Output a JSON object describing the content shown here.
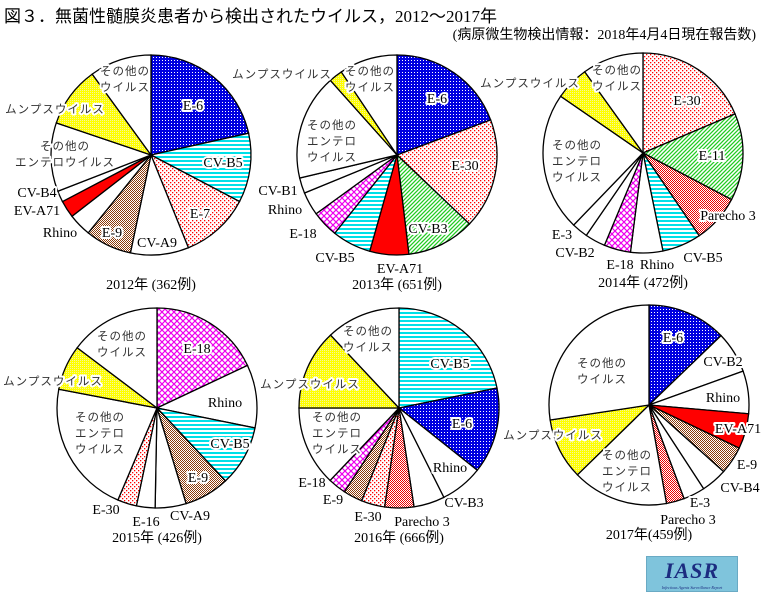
{
  "title": "図３．無菌性髄膜炎患者から検出されたウイルス，2012～2017年",
  "subtitle": "(病原微生物検出情報：2018年4月4日現在報告数)",
  "logo": {
    "text": "IASR",
    "subtext": "Infectious Agents Surveillance Report"
  },
  "chart_data": [
    {
      "type": "pie",
      "title": "2012年 (362例)",
      "unit": "percent (estimated)",
      "slices": [
        {
          "label": [
            "E-6"
          ],
          "value": 21.5,
          "pattern": "blue-check"
        },
        {
          "label": [
            "CV-B5"
          ],
          "value": 11.2,
          "pattern": "cyan-stripe"
        },
        {
          "label": [
            "E-7"
          ],
          "value": 11.2,
          "pattern": "red-dots"
        },
        {
          "label": [
            "CV-A9"
          ],
          "value": 9.4,
          "pattern": "white"
        },
        {
          "label": [
            "E-9"
          ],
          "value": 7.5,
          "pattern": "brown-check"
        },
        {
          "label": [
            "Rhino"
          ],
          "value": 3.7,
          "pattern": "white"
        },
        {
          "label": [
            "EV-A71"
          ],
          "value": 2.8,
          "pattern": "solid-red"
        },
        {
          "label": [
            "CV-B4"
          ],
          "value": 1.8,
          "pattern": "white"
        },
        {
          "label": [
            "その他の",
            "エンテロウイルス"
          ],
          "value": 11.1,
          "pattern": "white",
          "kind": "other"
        },
        {
          "label": [
            "ムンプスウイルス"
          ],
          "value": 9.8,
          "pattern": "yellow-dots",
          "kind": "mumps"
        },
        {
          "label": [
            "その他の",
            "ウイルス"
          ],
          "value": 10.0,
          "pattern": "white",
          "kind": "other"
        }
      ]
    },
    {
      "type": "pie",
      "title": "2013年 (651例)",
      "unit": "percent (estimated)",
      "slices": [
        {
          "label": [
            "E-6"
          ],
          "value": 19.3,
          "pattern": "blue-check"
        },
        {
          "label": [
            "E-30"
          ],
          "value": 17.8,
          "pattern": "red-dots"
        },
        {
          "label": [
            "CV-B3"
          ],
          "value": 11.0,
          "pattern": "green-diag"
        },
        {
          "label": [
            "EV-A71"
          ],
          "value": 6.3,
          "pattern": "solid-red"
        },
        {
          "label": [
            "CV-B5"
          ],
          "value": 6.3,
          "pattern": "cyan-stripe"
        },
        {
          "label": [
            "E-18"
          ],
          "value": 4.3,
          "pattern": "magenta-grid"
        },
        {
          "label": [
            "Rhino"
          ],
          "value": 3.8,
          "pattern": "white"
        },
        {
          "label": [
            "CV-B1"
          ],
          "value": 2.5,
          "pattern": "white"
        },
        {
          "label": [
            "その他の",
            "エンテロ",
            "ウイルス"
          ],
          "value": 17.1,
          "pattern": "white",
          "kind": "other"
        },
        {
          "label": [
            "ムンプスウイルス"
          ],
          "value": 2.2,
          "pattern": "yellow-dots",
          "kind": "mumps"
        },
        {
          "label": [
            "その他の",
            "ウイルス"
          ],
          "value": 9.4,
          "pattern": "white",
          "kind": "other"
        }
      ]
    },
    {
      "type": "pie",
      "title": "2014年 (472例)",
      "unit": "percent (estimated)",
      "slices": [
        {
          "label": [
            "E-30"
          ],
          "value": 18.6,
          "pattern": "red-dots"
        },
        {
          "label": [
            "E-11"
          ],
          "value": 14.1,
          "pattern": "green-diag"
        },
        {
          "label": [
            "Parecho 3"
          ],
          "value": 7.8,
          "pattern": "red-check"
        },
        {
          "label": [
            "CV-B5"
          ],
          "value": 6.3,
          "pattern": "cyan-stripe"
        },
        {
          "label": [
            "Rhino"
          ],
          "value": 5.2,
          "pattern": "white"
        },
        {
          "label": [
            "E-18"
          ],
          "value": 4.3,
          "pattern": "magenta-grid"
        },
        {
          "label": [
            "CV-B2"
          ],
          "value": 3.3,
          "pattern": "white"
        },
        {
          "label": [
            "E-3"
          ],
          "value": 2.6,
          "pattern": "white"
        },
        {
          "label": [
            "その他の",
            "エンテロ",
            "ウイルス"
          ],
          "value": 22.4,
          "pattern": "white",
          "kind": "other"
        },
        {
          "label": [
            "ムンプスウイルス"
          ],
          "value": 5.5,
          "pattern": "yellow-dots",
          "kind": "mumps"
        },
        {
          "label": [
            "その他の",
            "ウイルス"
          ],
          "value": 9.9,
          "pattern": "white",
          "kind": "other"
        }
      ]
    },
    {
      "type": "pie",
      "title": "2015年 (426例)",
      "unit": "percent (estimated)",
      "slices": [
        {
          "label": [
            "E-18"
          ],
          "value": 18.0,
          "pattern": "magenta-grid"
        },
        {
          "label": [
            "Rhino"
          ],
          "value": 10.2,
          "pattern": "white"
        },
        {
          "label": [
            "CV-B5"
          ],
          "value": 9.8,
          "pattern": "cyan-stripe"
        },
        {
          "label": [
            "E-9"
          ],
          "value": 7.3,
          "pattern": "brown-check"
        },
        {
          "label": [
            "CV-A9"
          ],
          "value": 5.0,
          "pattern": "white"
        },
        {
          "label": [
            "E-16"
          ],
          "value": 3.0,
          "pattern": "white"
        },
        {
          "label": [
            "E-30"
          ],
          "value": 3.1,
          "pattern": "red-dots"
        },
        {
          "label": [
            "その他の",
            "エンテロ",
            "ウイルス"
          ],
          "value": 21.6,
          "pattern": "white",
          "kind": "other"
        },
        {
          "label": [
            "ムンプスウイルス"
          ],
          "value": 7.3,
          "pattern": "yellow-dots",
          "kind": "mumps"
        },
        {
          "label": [
            "その他の",
            "ウイルス"
          ],
          "value": 14.7,
          "pattern": "white",
          "kind": "other"
        }
      ]
    },
    {
      "type": "pie",
      "title": "2016年 (666例)",
      "unit": "percent (estimated)",
      "slices": [
        {
          "label": [
            "CV-B5"
          ],
          "value": 21.8,
          "pattern": "cyan-stripe"
        },
        {
          "label": [
            "E-6"
          ],
          "value": 13.9,
          "pattern": "blue-check"
        },
        {
          "label": [
            "Rhino"
          ],
          "value": 6.9,
          "pattern": "white"
        },
        {
          "label": [
            "CV-B3"
          ],
          "value": 5.0,
          "pattern": "white"
        },
        {
          "label": [
            "Parecho 3"
          ],
          "value": 4.7,
          "pattern": "red-check"
        },
        {
          "label": [
            "E-30"
          ],
          "value": 3.8,
          "pattern": "red-dots"
        },
        {
          "label": [
            "E-9"
          ],
          "value": 3.1,
          "pattern": "brown-check"
        },
        {
          "label": [
            "E-18"
          ],
          "value": 2.9,
          "pattern": "magenta-grid"
        },
        {
          "label": [
            "その他の",
            "エンテロ",
            "ウイルス"
          ],
          "value": 12.9,
          "pattern": "white",
          "kind": "other"
        },
        {
          "label": [
            "ムンプスウイルス"
          ],
          "value": 13.0,
          "pattern": "yellow-dots",
          "kind": "mumps"
        },
        {
          "label": [
            "その他の",
            "ウイルス"
          ],
          "value": 12.0,
          "pattern": "white",
          "kind": "other"
        }
      ]
    },
    {
      "type": "pie",
      "title": "2017年(459例)",
      "unit": "percent (estimated)",
      "slices": [
        {
          "label": [
            "E-6"
          ],
          "value": 12.8,
          "pattern": "blue-check"
        },
        {
          "label": [
            "CV-B2"
          ],
          "value": 6.7,
          "pattern": "white"
        },
        {
          "label": [
            "Rhino"
          ],
          "value": 6.9,
          "pattern": "white"
        },
        {
          "label": [
            "EV-A71"
          ],
          "value": 5.7,
          "pattern": "solid-red"
        },
        {
          "label": [
            "E-9"
          ],
          "value": 4.5,
          "pattern": "brown-check"
        },
        {
          "label": [
            "CV-B4"
          ],
          "value": 4.2,
          "pattern": "white"
        },
        {
          "label": [
            "E-3"
          ],
          "value": 3.5,
          "pattern": "white"
        },
        {
          "label": [
            "Parecho 3"
          ],
          "value": 2.9,
          "pattern": "red-check"
        },
        {
          "label": [
            "その他の",
            "エンテロ",
            "ウイルス"
          ],
          "value": 15.5,
          "pattern": "white",
          "kind": "other"
        },
        {
          "label": [
            "ムンプスウイルス"
          ],
          "value": 9.9,
          "pattern": "yellow-dots",
          "kind": "mumps"
        },
        {
          "label": [
            "その他の",
            "ウイルス"
          ],
          "value": 27.4,
          "pattern": "white",
          "kind": "other"
        }
      ]
    }
  ]
}
